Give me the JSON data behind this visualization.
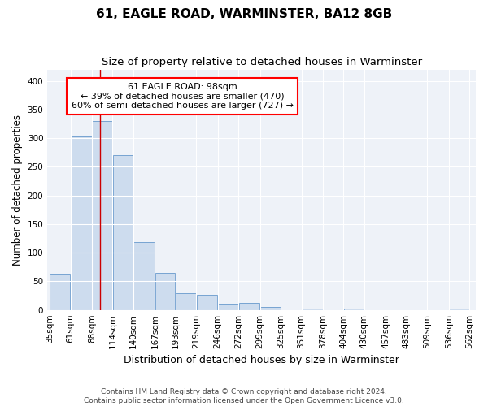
{
  "title": "61, EAGLE ROAD, WARMINSTER, BA12 8GB",
  "subtitle": "Size of property relative to detached houses in Warminster",
  "xlabel": "Distribution of detached houses by size in Warminster",
  "ylabel": "Number of detached properties",
  "bar_color": "#cddcee",
  "bar_edge_color": "#6699cc",
  "background_color": "#eef2f8",
  "grid_color": "#ffffff",
  "annotation_line1": "61 EAGLE ROAD: 98sqm",
  "annotation_line2": "← 39% of detached houses are smaller (470)",
  "annotation_line3": "60% of semi-detached houses are larger (727) →",
  "vline_x": 98,
  "vline_color": "#cc0000",
  "bin_edges": [
    35,
    61,
    88,
    114,
    140,
    167,
    193,
    219,
    246,
    272,
    299,
    325,
    351,
    378,
    404,
    430,
    457,
    483,
    509,
    536,
    562
  ],
  "bar_heights": [
    62,
    303,
    330,
    270,
    119,
    65,
    30,
    26,
    9,
    12,
    5,
    0,
    3,
    0,
    3,
    0,
    0,
    0,
    0,
    3
  ],
  "ylim": [
    0,
    420
  ],
  "yticks": [
    0,
    50,
    100,
    150,
    200,
    250,
    300,
    350,
    400
  ],
  "footnote": "Contains HM Land Registry data © Crown copyright and database right 2024.\nContains public sector information licensed under the Open Government Licence v3.0.",
  "title_fontsize": 11,
  "subtitle_fontsize": 9.5,
  "xlabel_fontsize": 9,
  "ylabel_fontsize": 8.5,
  "tick_fontsize": 7.5,
  "annotation_fontsize": 8,
  "footnote_fontsize": 6.5
}
